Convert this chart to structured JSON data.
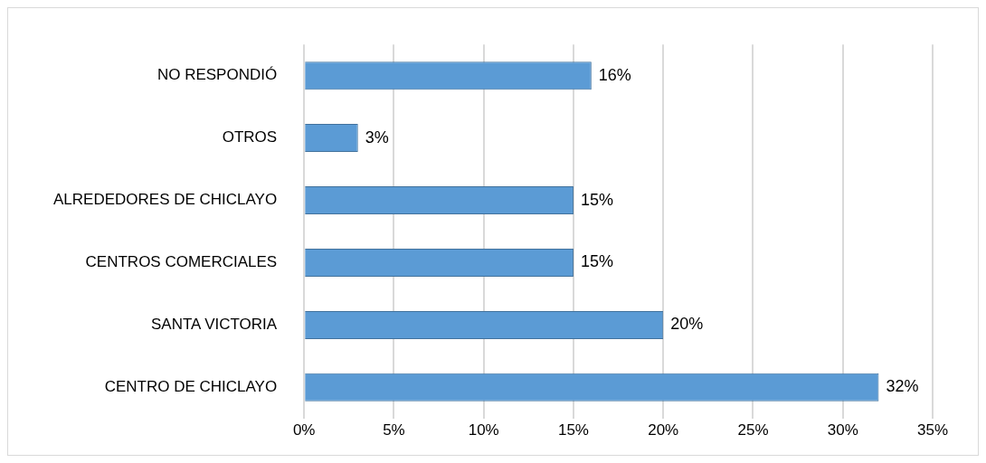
{
  "chart_data": {
    "type": "bar",
    "orientation": "horizontal",
    "categories": [
      "NO RESPONDIÓ",
      "OTROS",
      "ALREDEDORES DE CHICLAYO",
      "CENTROS COMERCIALES",
      "SANTA VICTORIA",
      "CENTRO DE CHICLAYO"
    ],
    "values": [
      16,
      3,
      15,
      15,
      20,
      32
    ],
    "value_labels": [
      "16%",
      "3%",
      "15%",
      "15%",
      "20%",
      "32%"
    ],
    "color": "#5b9bd5",
    "xlim": [
      0,
      35
    ],
    "xticks": [
      {
        "value": 0,
        "label": "0%"
      },
      {
        "value": 5,
        "label": "5%"
      },
      {
        "value": 10,
        "label": "10%"
      },
      {
        "value": 15,
        "label": "15%"
      },
      {
        "value": 20,
        "label": "20%"
      },
      {
        "value": 25,
        "label": "25%"
      },
      {
        "value": 30,
        "label": "30%"
      },
      {
        "value": 35,
        "label": "35%"
      }
    ],
    "grid": "x"
  }
}
